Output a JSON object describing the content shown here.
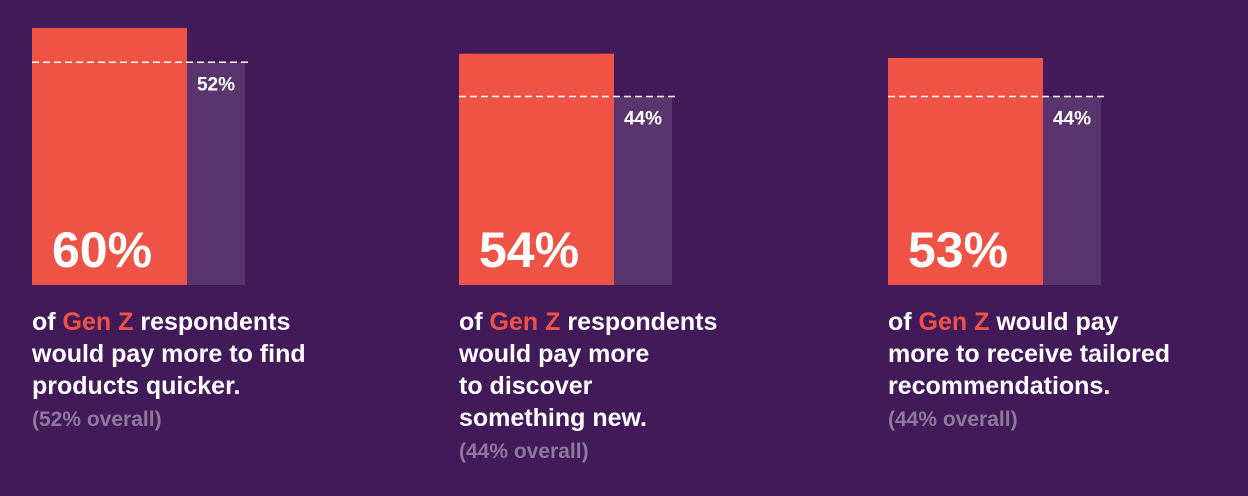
{
  "colors": {
    "background": "#431a59",
    "genz_bar": "#ef5346",
    "overall_bar": "#5a356d",
    "highlight": "#ef5346",
    "muted_text": "#8d7a9c"
  },
  "chart_data": [
    {
      "type": "bar",
      "series": [
        {
          "name": "Gen Z",
          "values": [
            60
          ]
        },
        {
          "name": "overall",
          "values": [
            52
          ]
        }
      ],
      "genz_label": "60%",
      "overall_label": "52%",
      "caption_lines": [
        {
          "pre": "of ",
          "hl": "Gen Z",
          "post": " respondents"
        },
        {
          "pre": "would pay more to find",
          "hl": "",
          "post": ""
        },
        {
          "pre": "products quicker.",
          "hl": "",
          "post": ""
        }
      ],
      "overall_note": "(52% overall)"
    },
    {
      "type": "bar",
      "series": [
        {
          "name": "Gen Z",
          "values": [
            54
          ]
        },
        {
          "name": "overall",
          "values": [
            44
          ]
        }
      ],
      "genz_label": "54%",
      "overall_label": "44%",
      "caption_lines": [
        {
          "pre": "of ",
          "hl": "Gen Z",
          "post": " respondents"
        },
        {
          "pre": "would pay more",
          "hl": "",
          "post": ""
        },
        {
          "pre": "to discover",
          "hl": "",
          "post": ""
        },
        {
          "pre": "something new.",
          "hl": "",
          "post": ""
        }
      ],
      "overall_note": "(44% overall)"
    },
    {
      "type": "bar",
      "series": [
        {
          "name": "Gen Z",
          "values": [
            53
          ]
        },
        {
          "name": "overall",
          "values": [
            44
          ]
        }
      ],
      "genz_label": "53%",
      "overall_label": "44%",
      "caption_lines": [
        {
          "pre": "of ",
          "hl": "Gen Z",
          "post": " would pay"
        },
        {
          "pre": "more to receive tailored",
          "hl": "",
          "post": ""
        },
        {
          "pre": "recommendations.",
          "hl": "",
          "post": ""
        }
      ],
      "overall_note": "(44% overall)"
    }
  ]
}
